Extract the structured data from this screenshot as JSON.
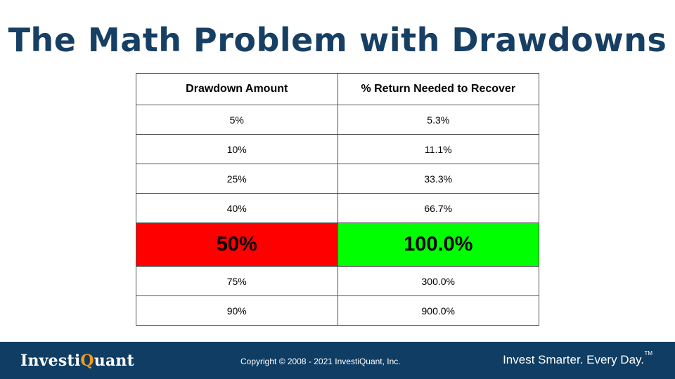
{
  "slide": {
    "title": "The Math Problem with Drawdowns"
  },
  "table": {
    "headers": [
      "Drawdown Amount",
      "% Return Needed to Recover"
    ],
    "rows": [
      {
        "drawdown": "5%",
        "recover": "5.3%"
      },
      {
        "drawdown": "10%",
        "recover": "11.1%"
      },
      {
        "drawdown": "25%",
        "recover": "33.3%"
      },
      {
        "drawdown": "40%",
        "recover": "66.7%"
      },
      {
        "drawdown": "50%",
        "recover": "100.0%",
        "highlight": true
      },
      {
        "drawdown": "75%",
        "recover": "300.0%"
      },
      {
        "drawdown": "90%",
        "recover": "900.0%"
      }
    ],
    "colors": {
      "highlight_drawdown": "#ff0000",
      "highlight_recover": "#00ff00",
      "border": "#555555"
    }
  },
  "footer": {
    "logo": {
      "part1": "Investi",
      "part2": "Q",
      "part3": "uant",
      "accent_color": "#f39a1f"
    },
    "copyright": "Copyright © 2008 - 2021 InvestiQuant, Inc.",
    "tagline": "Invest Smarter. Every Day.",
    "trademark": "TM",
    "background": "#0f3d63"
  }
}
